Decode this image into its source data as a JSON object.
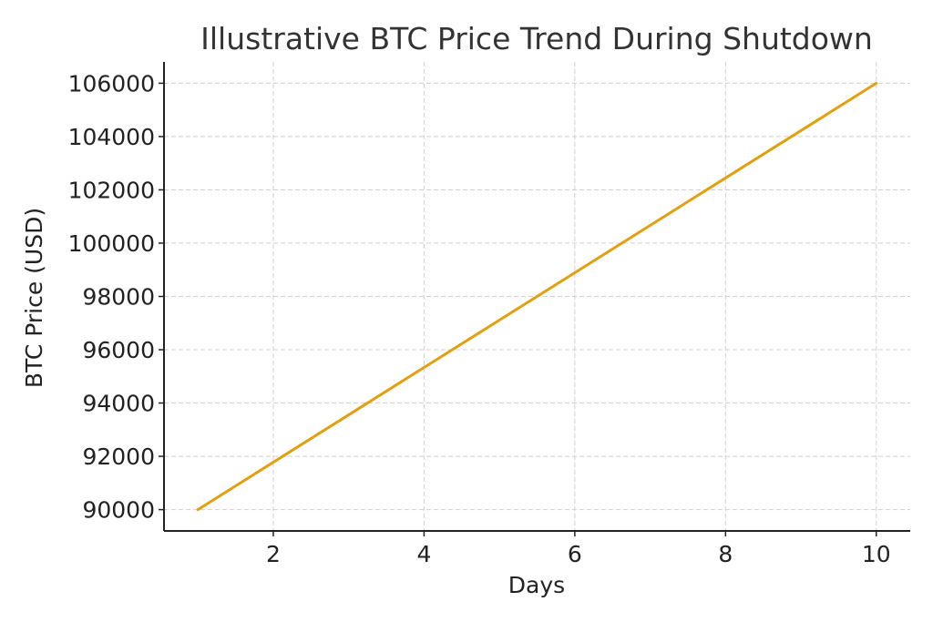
{
  "chart_data": {
    "type": "line",
    "title": "Illustrative BTC Price Trend During Shutdown",
    "xlabel": "Days",
    "ylabel": "BTC Price (USD)",
    "x": [
      1,
      2,
      3,
      4,
      5,
      6,
      7,
      8,
      9,
      10
    ],
    "series": [
      {
        "values": [
          90000,
          91777.78,
          93555.56,
          95333.33,
          97111.11,
          98888.89,
          100666.67,
          102444.44,
          104222.22,
          106000
        ],
        "color": "#E39F0E"
      }
    ],
    "xlim": [
      0.55,
      10.45
    ],
    "ylim": [
      89200,
      106800
    ],
    "xticks": [
      2,
      4,
      6,
      8,
      10
    ],
    "yticks": [
      90000,
      92000,
      94000,
      96000,
      98000,
      100000,
      102000,
      104000,
      106000
    ],
    "grid": true,
    "legend": "none"
  }
}
